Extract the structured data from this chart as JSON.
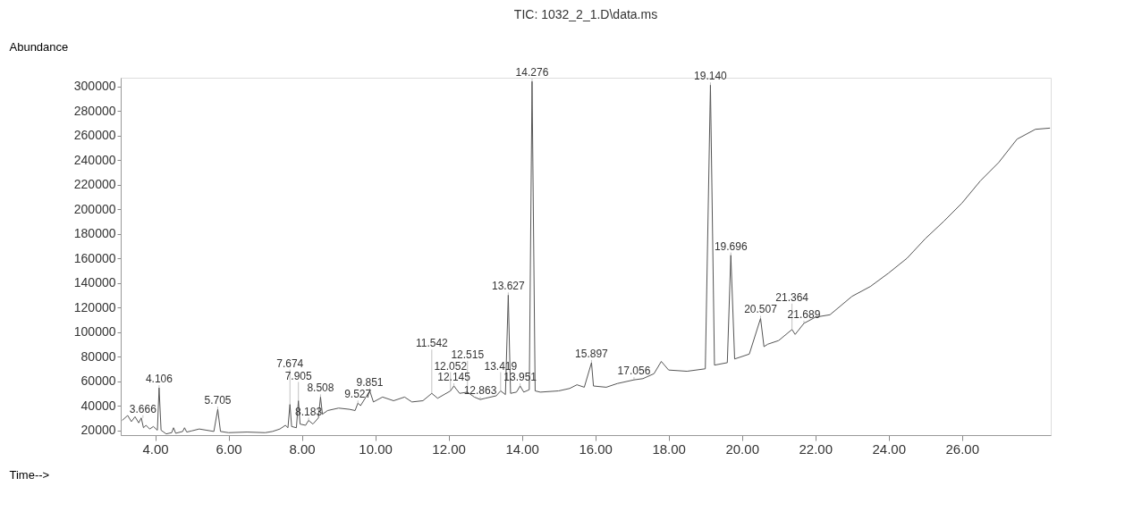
{
  "chart_data": {
    "type": "line",
    "title": "TIC: 1032_2_1.D\\data.ms",
    "xlabel": "Time-->",
    "ylabel": "Abundance",
    "series": [
      {
        "color": "#555555",
        "x": [
          3.1,
          3.25,
          3.35,
          3.45,
          3.55,
          3.62,
          3.68,
          3.75,
          3.85,
          3.95,
          4.06,
          4.106,
          4.16,
          4.3,
          4.45,
          4.5,
          4.56,
          4.75,
          4.8,
          4.86,
          5.0,
          5.2,
          5.4,
          5.6,
          5.705,
          5.78,
          6.0,
          6.5,
          7.0,
          7.2,
          7.4,
          7.55,
          7.62,
          7.674,
          7.72,
          7.85,
          7.905,
          7.95,
          8.1,
          8.183,
          8.3,
          8.45,
          8.508,
          8.56,
          8.7,
          9.0,
          9.3,
          9.45,
          9.527,
          9.6,
          9.851,
          9.95,
          10.2,
          10.5,
          10.8,
          11.0,
          11.3,
          11.542,
          11.7,
          12.052,
          12.145,
          12.3,
          12.515,
          12.7,
          12.863,
          13.0,
          13.3,
          13.419,
          13.55,
          13.627,
          13.69,
          13.85,
          13.951,
          14.05,
          14.2,
          14.276,
          14.36,
          14.5,
          15.0,
          15.3,
          15.5,
          15.7,
          15.897,
          15.95,
          16.3,
          16.6,
          17.056,
          17.3,
          17.6,
          17.8,
          18.0,
          18.5,
          19.0,
          19.14,
          19.25,
          19.6,
          19.696,
          19.8,
          20.2,
          20.507,
          20.6,
          20.7,
          21.0,
          21.364,
          21.45,
          21.689,
          22.0,
          22.4,
          23.0,
          23.5,
          24.0,
          24.5,
          25.0,
          25.5,
          26.0,
          26.5,
          27.0,
          27.5,
          28.0,
          28.4
        ],
        "values": [
          28000,
          32000,
          27000,
          31000,
          26000,
          30000,
          22000,
          24000,
          21000,
          23000,
          20000,
          54500,
          20000,
          17000,
          18000,
          22000,
          17500,
          19000,
          22000,
          18500,
          19500,
          21000,
          20000,
          19000,
          37000,
          19000,
          18000,
          18500,
          18000,
          19000,
          21000,
          24000,
          22000,
          41000,
          23000,
          22000,
          44000,
          25000,
          24000,
          28000,
          25000,
          30000,
          47000,
          33000,
          36000,
          38000,
          37000,
          36000,
          42000,
          40000,
          52000,
          43000,
          47000,
          44000,
          47000,
          43000,
          44000,
          50000,
          46000,
          52000,
          56000,
          50000,
          51000,
          47000,
          45000,
          46000,
          48000,
          52000,
          49000,
          130000,
          50000,
          51000,
          56000,
          51000,
          53000,
          304000,
          52000,
          51000,
          52000,
          54000,
          57000,
          55000,
          75000,
          56000,
          55000,
          58000,
          61000,
          62000,
          66000,
          76000,
          69000,
          68000,
          70000,
          301000,
          73000,
          75000,
          162500,
          78000,
          82000,
          111000,
          88000,
          90000,
          93000,
          102000,
          98000,
          107000,
          112000,
          114000,
          129000,
          137000,
          148000,
          160000,
          176000,
          190000,
          205000,
          223000,
          238000,
          257000,
          265000,
          266000
        ]
      }
    ],
    "xlim": [
      3.06,
      28.42
    ],
    "xticks": [
      {
        "value": 4,
        "label": "4.00"
      },
      {
        "value": 6,
        "label": "6.00"
      },
      {
        "value": 8,
        "label": "8.00"
      },
      {
        "value": 10,
        "label": "10.00"
      },
      {
        "value": 12,
        "label": "12.00"
      },
      {
        "value": 14,
        "label": "14.00"
      },
      {
        "value": 16,
        "label": "16.00"
      },
      {
        "value": 18,
        "label": "18.00"
      },
      {
        "value": 20,
        "label": "20.00"
      },
      {
        "value": 22,
        "label": "22.00"
      },
      {
        "value": 24,
        "label": "24.00"
      },
      {
        "value": 26,
        "label": "26.00"
      }
    ],
    "ylim": [
      16000,
      307000
    ],
    "yticks": [
      20000,
      40000,
      60000,
      80000,
      100000,
      120000,
      140000,
      160000,
      180000,
      200000,
      220000,
      240000,
      260000,
      280000,
      300000
    ],
    "grid": false,
    "marker": "none",
    "line_style": "solid",
    "annotations": [
      {
        "text": "3.666",
        "x": 3.666,
        "y": 30000
      },
      {
        "text": "4.106",
        "x": 4.106,
        "y": 54500
      },
      {
        "text": "5.705",
        "x": 5.705,
        "y": 37000
      },
      {
        "text": "7.674",
        "x": 7.674,
        "y": 41000
      },
      {
        "text": "7.905",
        "x": 7.905,
        "y": 44000
      },
      {
        "text": "8.183",
        "x": 8.183,
        "y": 28000
      },
      {
        "text": "8.508",
        "x": 8.508,
        "y": 47000
      },
      {
        "text": "9.527",
        "x": 9.527,
        "y": 42000
      },
      {
        "text": "9.851",
        "x": 9.851,
        "y": 52000
      },
      {
        "text": "11.542",
        "x": 11.542,
        "y": 50000
      },
      {
        "text": "12.052",
        "x": 12.052,
        "y": 52000
      },
      {
        "text": "12.145",
        "x": 12.145,
        "y": 56000
      },
      {
        "text": "12.515",
        "x": 12.515,
        "y": 51000
      },
      {
        "text": "12.863",
        "x": 12.863,
        "y": 45000
      },
      {
        "text": "13.419",
        "x": 13.419,
        "y": 52000
      },
      {
        "text": "13.627",
        "x": 13.627,
        "y": 130000
      },
      {
        "text": "13.951",
        "x": 13.951,
        "y": 56000
      },
      {
        "text": "14.276",
        "x": 14.276,
        "y": 304000
      },
      {
        "text": "15.897",
        "x": 15.897,
        "y": 75000
      },
      {
        "text": "17.056",
        "x": 17.056,
        "y": 61000
      },
      {
        "text": "19.140",
        "x": 19.14,
        "y": 301000
      },
      {
        "text": "19.696",
        "x": 19.696,
        "y": 162500
      },
      {
        "text": "20.507",
        "x": 20.507,
        "y": 111000
      },
      {
        "text": "21.364",
        "x": 21.364,
        "y": 102000
      },
      {
        "text": "21.689",
        "x": 21.689,
        "y": 107000
      }
    ]
  }
}
